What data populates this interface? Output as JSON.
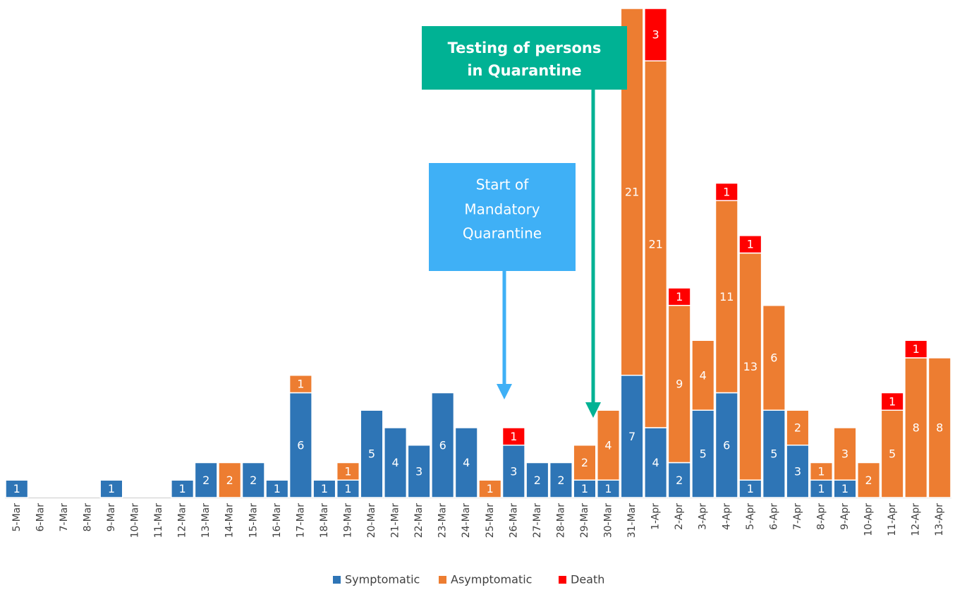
{
  "chart_data": {
    "type": "stacked-bar",
    "categories": [
      "5-Mar",
      "6-Mar",
      "7-Mar",
      "8-Mar",
      "9-Mar",
      "10-Mar",
      "11-Mar",
      "12-Mar",
      "13-Mar",
      "14-Mar",
      "15-Mar",
      "16-Mar",
      "17-Mar",
      "18-Mar",
      "19-Mar",
      "20-Mar",
      "21-Mar",
      "22-Mar",
      "23-Mar",
      "24-Mar",
      "25-Mar",
      "26-Mar",
      "27-Mar",
      "28-Mar",
      "29-Mar",
      "30-Mar",
      "31-Mar",
      "1-Apr",
      "2-Apr",
      "3-Apr",
      "4-Apr",
      "5-Apr",
      "6-Apr",
      "7-Apr",
      "8-Apr",
      "9-Apr",
      "10-Apr",
      "11-Apr",
      "12-Apr",
      "13-Apr"
    ],
    "series": [
      {
        "name": "Symptomatic",
        "color": "#2e75b6",
        "values": [
          1,
          null,
          null,
          null,
          1,
          null,
          null,
          1,
          2,
          null,
          2,
          1,
          6,
          1,
          1,
          5,
          4,
          3,
          6,
          4,
          null,
          3,
          2,
          2,
          1,
          1,
          7,
          4,
          2,
          5,
          6,
          1,
          5,
          3,
          1,
          1,
          null,
          null,
          null,
          null
        ]
      },
      {
        "name": "Asymptomatic",
        "color": "#ed7d31",
        "values": [
          null,
          null,
          null,
          null,
          null,
          null,
          null,
          null,
          null,
          2,
          null,
          null,
          1,
          null,
          1,
          null,
          null,
          null,
          null,
          null,
          1,
          null,
          null,
          null,
          2,
          4,
          21,
          21,
          9,
          4,
          11,
          13,
          6,
          2,
          1,
          3,
          2,
          5,
          8,
          8
        ]
      },
      {
        "name": "Death",
        "color": "#ff0000",
        "values": [
          null,
          null,
          null,
          null,
          null,
          null,
          null,
          null,
          null,
          null,
          null,
          null,
          null,
          null,
          null,
          null,
          null,
          null,
          null,
          null,
          null,
          1,
          null,
          null,
          null,
          null,
          null,
          3,
          1,
          null,
          1,
          1,
          null,
          null,
          null,
          null,
          null,
          1,
          1,
          null
        ]
      }
    ],
    "ylim": [
      0,
      28
    ],
    "legend": "bottom",
    "annotations": [
      {
        "lines": [
          "Testing of persons",
          "in Quarantine"
        ],
        "color": "#00b294"
      },
      {
        "lines": [
          "Start of",
          "Mandatory",
          "Quarantine"
        ],
        "color": "#3fb0f6"
      }
    ]
  }
}
